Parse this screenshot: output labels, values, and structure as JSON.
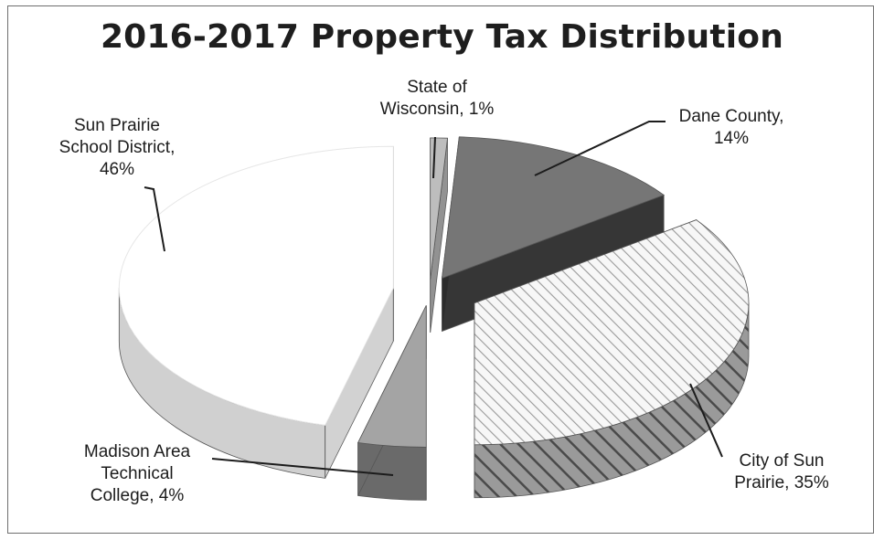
{
  "chart_data": {
    "type": "pie",
    "title": "2016-2017 Property Tax Distribution",
    "slices": [
      {
        "name": "State of Wisconsin",
        "value": 1,
        "label_lines": [
          "State of",
          "Wisconsin, 1%"
        ],
        "color": "#b8b8b8"
      },
      {
        "name": "Dane County",
        "value": 14,
        "label_lines": [
          "Dane County,",
          "14%"
        ],
        "color": "#6f6f6f"
      },
      {
        "name": "City of Sun Prairie",
        "value": 35,
        "label_lines": [
          "City of Sun",
          "Prairie, 35%"
        ],
        "color": "#f4f4f4"
      },
      {
        "name": "Madison Area Technical College",
        "value": 4,
        "label_lines": [
          "Madison Area",
          "Technical",
          "College, 4%"
        ],
        "color": "#8e8e8e"
      },
      {
        "name": "Sun Prairie School District",
        "value": 46,
        "label_lines": [
          "Sun Prairie",
          "School District,",
          "46%"
        ],
        "color": "#ffffff"
      }
    ],
    "style": "3d-exploded"
  }
}
